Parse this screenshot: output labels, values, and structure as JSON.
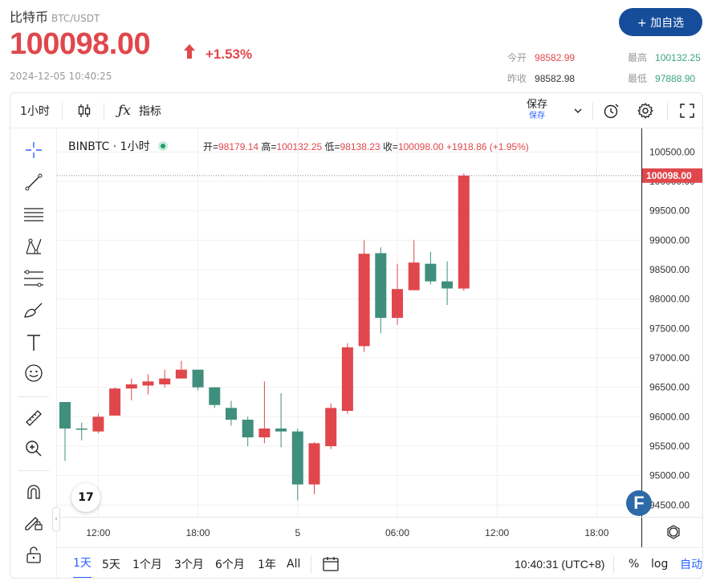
{
  "header": {
    "title": "比特币",
    "pair": "BTC/USDT",
    "price": "100098.00",
    "change_pct": "+1.53%",
    "timestamp": "2024-12-05 10:40:25",
    "add_button": "+ 加自选",
    "stats": {
      "open_label": "今开",
      "open_value": "98582.99",
      "prev_label": "昨收",
      "prev_value": "98582.98",
      "high_label": "最高",
      "high_value": "100132.25",
      "low_label": "最低",
      "low_value": "97888.90"
    }
  },
  "toolbar": {
    "interval": "1小时",
    "indicators": "指标",
    "save": "保存",
    "save_sub": "保存"
  },
  "legend": {
    "symbol": "BINBTC · 1小时",
    "open_label": "开=",
    "open": "98179.14",
    "high_label": "高=",
    "high": "100132.25",
    "low_label": "低=",
    "low": "98138.23",
    "close_label": "收=",
    "close": "100098.00",
    "change": "+1918.86 (+1.95%)"
  },
  "chart_data": {
    "type": "candlestick",
    "y_ticks": [
      "100500.00",
      "100000.00",
      "99500.00",
      "99000.00",
      "98500.00",
      "98000.00",
      "97500.00",
      "97000.00",
      "96500.00",
      "96000.00",
      "95500.00",
      "95000.00",
      "94500.00"
    ],
    "y_tick_values": [
      100500,
      100000,
      99500,
      99000,
      98500,
      98000,
      97500,
      97000,
      96500,
      96000,
      95500,
      95000,
      94500
    ],
    "ylim": [
      94300,
      100900
    ],
    "last_price_label": "100098.00",
    "x_ticks": [
      "12:00",
      "18:00",
      "5",
      "06:00",
      "12:00",
      "18:00"
    ],
    "x_tick_bar_index": [
      2,
      8,
      14,
      20,
      26,
      32
    ],
    "grid": true,
    "candles": [
      {
        "o": 96250,
        "h": 96250,
        "l": 95250,
        "c": 95800
      },
      {
        "o": 95800,
        "h": 95900,
        "l": 95600,
        "c": 95780
      },
      {
        "o": 95750,
        "h": 96050,
        "l": 95720,
        "c": 96000
      },
      {
        "o": 96020,
        "h": 96500,
        "l": 96020,
        "c": 96480
      },
      {
        "o": 96480,
        "h": 96650,
        "l": 96280,
        "c": 96550
      },
      {
        "o": 96530,
        "h": 96720,
        "l": 96380,
        "c": 96600
      },
      {
        "o": 96550,
        "h": 96800,
        "l": 96500,
        "c": 96650
      },
      {
        "o": 96650,
        "h": 96950,
        "l": 96650,
        "c": 96800
      },
      {
        "o": 96800,
        "h": 96800,
        "l": 96450,
        "c": 96500
      },
      {
        "o": 96500,
        "h": 96500,
        "l": 96150,
        "c": 96200
      },
      {
        "o": 96150,
        "h": 96270,
        "l": 95850,
        "c": 95950
      },
      {
        "o": 95950,
        "h": 96000,
        "l": 95500,
        "c": 95650
      },
      {
        "o": 95650,
        "h": 96600,
        "l": 95550,
        "c": 95800
      },
      {
        "o": 95800,
        "h": 96400,
        "l": 95480,
        "c": 95750
      },
      {
        "o": 95750,
        "h": 95800,
        "l": 94580,
        "c": 94850
      },
      {
        "o": 94850,
        "h": 95570,
        "l": 94680,
        "c": 95550
      },
      {
        "o": 95500,
        "h": 96230,
        "l": 95450,
        "c": 96150
      },
      {
        "o": 96100,
        "h": 97250,
        "l": 96050,
        "c": 97180
      },
      {
        "o": 97200,
        "h": 99000,
        "l": 97100,
        "c": 98770
      },
      {
        "o": 98780,
        "h": 98880,
        "l": 97420,
        "c": 97680
      },
      {
        "o": 97680,
        "h": 98600,
        "l": 97560,
        "c": 98170
      },
      {
        "o": 98150,
        "h": 99000,
        "l": 98150,
        "c": 98620
      },
      {
        "o": 98600,
        "h": 98800,
        "l": 98250,
        "c": 98300
      },
      {
        "o": 98300,
        "h": 98640,
        "l": 97900,
        "c": 98180
      },
      {
        "o": 98179.14,
        "h": 100132.25,
        "l": 98138.23,
        "c": 100098.0
      }
    ],
    "up_color": "#e0474c",
    "down_color": "#3f8f7c"
  },
  "bottombar": {
    "ranges": [
      "1天",
      "5天",
      "1个月",
      "3个月",
      "6个月",
      "1年",
      "All"
    ],
    "time": "10:40:31 (UTC+8)",
    "pct": "%",
    "log": "log",
    "auto": "自动"
  },
  "logos": {
    "tv": "17",
    "f": "F"
  },
  "colors": {
    "accent": "#164d9a",
    "up": "#e0474c",
    "green": "#3aa57a",
    "link": "#2962ff"
  }
}
